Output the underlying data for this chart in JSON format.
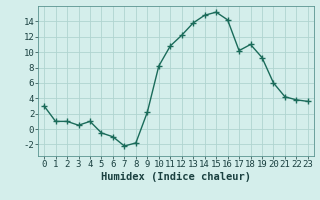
{
  "x": [
    0,
    1,
    2,
    3,
    4,
    5,
    6,
    7,
    8,
    9,
    10,
    11,
    12,
    13,
    14,
    15,
    16,
    17,
    18,
    19,
    20,
    21,
    22,
    23
  ],
  "y": [
    3,
    1,
    1,
    0.5,
    1,
    -0.5,
    -1,
    -2.2,
    -1.8,
    2.2,
    8.2,
    10.8,
    12.2,
    13.8,
    14.8,
    15.2,
    14.2,
    10.2,
    11.0,
    9.3,
    6.0,
    4.2,
    3.8,
    3.6
  ],
  "line_color": "#1a6b5a",
  "marker": "+",
  "marker_size": 4,
  "background_color": "#d4eeeb",
  "grid_color": "#b0d4d0",
  "xlabel": "Humidex (Indice chaleur)",
  "ylim": [
    -3.5,
    16
  ],
  "yticks": [
    -2,
    0,
    2,
    4,
    6,
    8,
    10,
    12,
    14
  ],
  "xlim": [
    -0.5,
    23.5
  ],
  "xticks": [
    0,
    1,
    2,
    3,
    4,
    5,
    6,
    7,
    8,
    9,
    10,
    11,
    12,
    13,
    14,
    15,
    16,
    17,
    18,
    19,
    20,
    21,
    22,
    23
  ],
  "xlabel_fontsize": 7.5,
  "tick_fontsize": 6.5,
  "line_width": 1.0
}
